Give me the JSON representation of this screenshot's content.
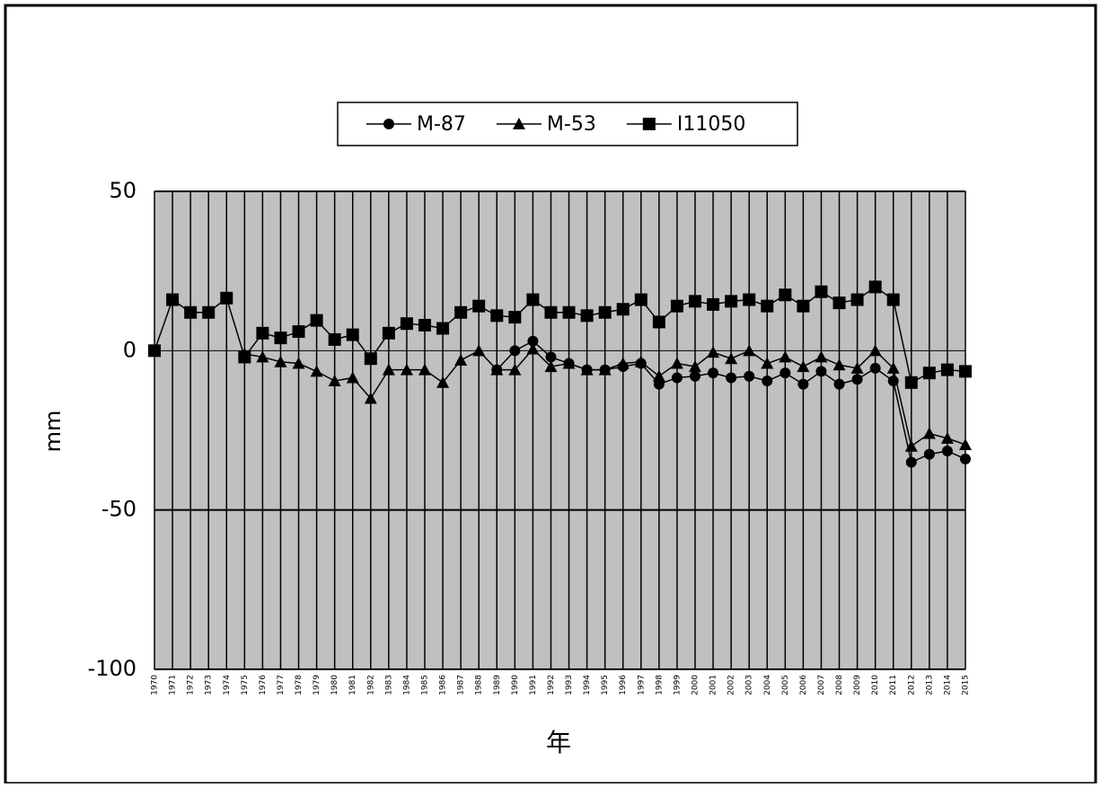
{
  "chart_data": {
    "type": "line",
    "y_label": "mm",
    "x_label": "年",
    "categories": [
      "1970",
      "1971",
      "1972",
      "1973",
      "1974",
      "1975",
      "1976",
      "1977",
      "1978",
      "1979",
      "1980",
      "1981",
      "1982",
      "1983",
      "1984",
      "1985",
      "1986",
      "1987",
      "1988",
      "1989",
      "1990",
      "1991",
      "1992",
      "1993",
      "1994",
      "1995",
      "1996",
      "1997",
      "1998",
      "1999",
      "2000",
      "2001",
      "2002",
      "2003",
      "2004",
      "2005",
      "2006",
      "2007",
      "2008",
      "2009",
      "2010",
      "2011",
      "2012",
      "2013",
      "2014",
      "2015"
    ],
    "series": [
      {
        "name": "M-87",
        "color": "#000000",
        "marker": "circle",
        "values": [
          null,
          null,
          null,
          null,
          null,
          null,
          null,
          null,
          null,
          null,
          null,
          null,
          null,
          null,
          null,
          null,
          null,
          null,
          null,
          -6,
          0,
          3,
          -2,
          -4,
          -6,
          -6,
          -5,
          -4,
          -10.5,
          -8.5,
          -8,
          -7,
          -8.5,
          -8,
          -9.5,
          -7,
          -10.5,
          -6.5,
          -10.5,
          -9,
          -5.5,
          -9.5,
          -35,
          -32.5,
          -31.5,
          -34
        ]
      },
      {
        "name": "M-53",
        "color": "#000000",
        "marker": "triangle",
        "values": [
          null,
          null,
          null,
          null,
          null,
          -1,
          -2,
          -3.5,
          -4,
          -6.5,
          -9.5,
          -8.5,
          -15,
          -6,
          -6,
          -6,
          -10,
          -3,
          0,
          -6,
          -6,
          0.5,
          -5,
          -4,
          -6,
          -6,
          -4,
          -3.5,
          -8,
          -4,
          -5,
          -0.5,
          -2.5,
          0,
          -4,
          -2,
          -5,
          -2,
          -4.5,
          -5.5,
          0,
          -5.5,
          -30,
          -26,
          -27.5,
          -29.5
        ]
      },
      {
        "name": "I11050",
        "color": "#000000",
        "marker": "square",
        "values": [
          0,
          16,
          12,
          12,
          16.5,
          -2,
          5.5,
          4,
          6,
          9.5,
          3.5,
          5,
          -2.5,
          5.5,
          8.5,
          8,
          7,
          12,
          14,
          11,
          10.5,
          16,
          12,
          12,
          11,
          12,
          13,
          16,
          9,
          14,
          15.5,
          14.5,
          15.5,
          16,
          14,
          17.5,
          14,
          18.5,
          15,
          16,
          20,
          16,
          -10,
          -7,
          -6,
          -6.5
        ]
      }
    ],
    "ylim": [
      -100,
      50
    ],
    "yticks": [
      50,
      0,
      -50,
      -100
    ],
    "grid": true,
    "plot_background": "#c0c0c0"
  }
}
